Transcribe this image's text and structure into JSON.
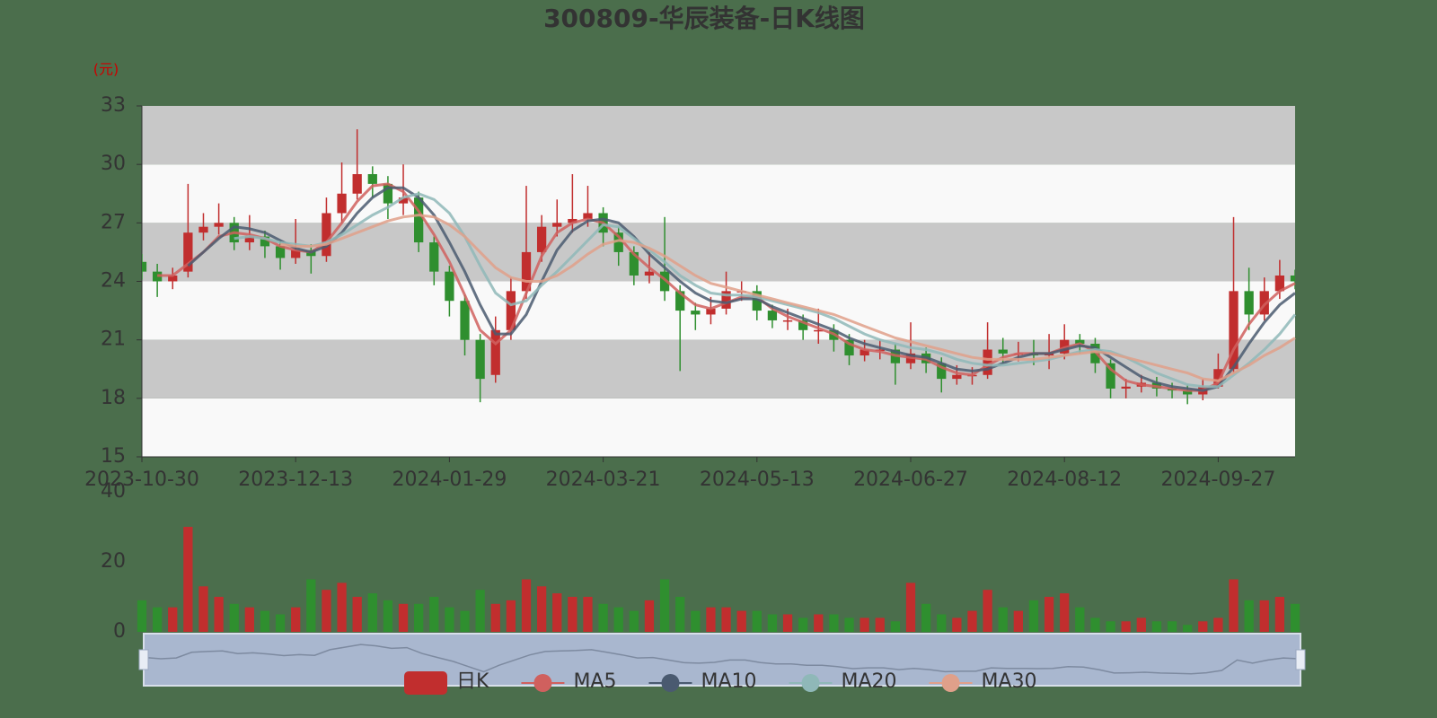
{
  "chart_data": {
    "type": "candlestick",
    "title": "300809-华辰装备-日K线图",
    "y_unit": "(元)",
    "categories": [
      "2023-10-30",
      null,
      null,
      null,
      null,
      null,
      null,
      null,
      null,
      null,
      "2023-12-13",
      null,
      null,
      null,
      null,
      null,
      null,
      null,
      null,
      null,
      "2024-01-29",
      null,
      null,
      null,
      null,
      null,
      null,
      null,
      null,
      null,
      "2024-03-21",
      null,
      null,
      null,
      null,
      null,
      null,
      null,
      null,
      null,
      "2024-05-13",
      null,
      null,
      null,
      null,
      null,
      null,
      null,
      null,
      null,
      "2024-06-27",
      null,
      null,
      null,
      null,
      null,
      null,
      null,
      null,
      null,
      "2024-08-12",
      null,
      null,
      null,
      null,
      null,
      null,
      null,
      null,
      null,
      "2024-09-27",
      null,
      null,
      null,
      null,
      null
    ],
    "ylim": [
      15,
      33
    ],
    "yticks": [
      15,
      18,
      21,
      24,
      27,
      30,
      33
    ],
    "split_area_colors": [
      "#f9f9f9",
      "#c8c8c8"
    ],
    "candles": {
      "name": "日K",
      "up_color": "#c12e2e",
      "down_color": "#2f8f2f",
      "open": [
        25,
        24.5,
        24,
        24.5,
        26.5,
        26.8,
        27,
        26,
        26.3,
        25.8,
        25.2,
        25.6,
        25.3,
        27.5,
        28.5,
        29.5,
        29,
        28,
        28.3,
        26,
        24.5,
        23,
        21,
        19.2,
        21.5,
        23.5,
        25.5,
        26.8,
        27,
        27.2,
        27.5,
        26.5,
        25.5,
        24.3,
        24.5,
        23.5,
        22.5,
        22.3,
        22.6,
        23.5,
        23.5,
        22.5,
        22,
        22,
        21.5,
        21.5,
        21,
        20.2,
        20.5,
        20.5,
        19.8,
        20.3,
        19.8,
        19,
        19.2,
        19.2,
        20.5,
        20.3,
        20.3,
        20.2,
        20.3,
        21,
        20.8,
        19.8,
        18.5,
        18.6,
        18.8,
        18.5,
        18.4,
        18.2,
        18.6,
        19.5,
        23.5,
        22.3,
        23.5,
        24.3
      ],
      "close": [
        24.5,
        24,
        24.3,
        26.5,
        26.8,
        27,
        26,
        26.3,
        25.8,
        25.2,
        25.6,
        25.3,
        27.5,
        28.5,
        29.5,
        29,
        28,
        28.3,
        26,
        24.5,
        23,
        21,
        19,
        21.5,
        23.5,
        25.5,
        26.8,
        27,
        27.2,
        27.5,
        26.5,
        25.5,
        24.3,
        24.5,
        23.5,
        22.5,
        22.3,
        22.6,
        23.5,
        23.5,
        22.5,
        22,
        22,
        21.5,
        21.5,
        21,
        20.2,
        20.5,
        20.5,
        19.8,
        20.3,
        19.8,
        19,
        19.2,
        19.2,
        20.5,
        20.3,
        20.3,
        20.2,
        20.3,
        21,
        20.8,
        19.8,
        18.5,
        18.6,
        18.8,
        18.5,
        18.4,
        18.2,
        18.6,
        19.5,
        23.5,
        22.3,
        23.5,
        24.3,
        24
      ],
      "low": [
        24.1,
        23.2,
        23.6,
        24.2,
        26.1,
        26.4,
        25.6,
        25.6,
        25.2,
        24.6,
        24.9,
        24.4,
        25,
        27,
        28.2,
        28.3,
        27.2,
        27.4,
        25.5,
        23.8,
        22.2,
        20.2,
        17.8,
        18.8,
        21,
        23.1,
        25,
        26.3,
        26.5,
        26.8,
        25.8,
        24.8,
        23.8,
        23.9,
        23,
        19.4,
        21.5,
        21.8,
        22.3,
        23,
        22,
        21.6,
        21.5,
        21,
        20.8,
        20.4,
        19.7,
        19.9,
        20,
        18.7,
        19.5,
        19.3,
        18.3,
        18.7,
        18.7,
        19,
        19.8,
        19.9,
        19.7,
        19.5,
        20,
        20.3,
        19.3,
        18,
        18,
        18.3,
        18.1,
        18,
        17.7,
        17.9,
        18.5,
        19.3,
        21.5,
        22,
        23.1,
        23.6
      ],
      "high": [
        25.4,
        24.9,
        24.7,
        29,
        27.5,
        28,
        27.3,
        27.4,
        26.6,
        26.1,
        27.2,
        25.9,
        28.3,
        30.1,
        31.8,
        29.9,
        29.4,
        30,
        28.6,
        26.3,
        24.8,
        23.3,
        21.3,
        22.2,
        24.2,
        28.9,
        27.4,
        28.2,
        29.5,
        28.9,
        27.8,
        26.8,
        25.8,
        25.5,
        27.3,
        23.8,
        22.9,
        23.2,
        24.5,
        24,
        23.8,
        22.8,
        22.6,
        22.3,
        22.6,
        21.8,
        21.3,
        21,
        21,
        20.8,
        21.9,
        20.6,
        20.1,
        19.7,
        19.6,
        21.9,
        21.1,
        20.9,
        21,
        21.3,
        21.8,
        21.3,
        21.1,
        20,
        19,
        19.2,
        19.1,
        18.8,
        18.7,
        19,
        20.3,
        27.3,
        24.7,
        24.2,
        25.1,
        24.6
      ]
    },
    "series": [
      {
        "name": "MA5",
        "color": "#d0605e",
        "values": [
          null,
          24.3,
          24.3,
          24.9,
          25.5,
          26.3,
          26.5,
          26.4,
          26.2,
          25.8,
          25.6,
          25.5,
          26,
          27,
          28.1,
          28.9,
          29,
          28.6,
          27.6,
          26.4,
          25,
          23.3,
          21.5,
          20.8,
          21.5,
          23.4,
          25.3,
          26.5,
          27,
          27.2,
          27,
          26.3,
          25.4,
          24.7,
          24.1,
          23.4,
          22.8,
          22.6,
          22.9,
          23.2,
          23.2,
          22.6,
          22.2,
          21.9,
          21.6,
          21.3,
          20.8,
          20.5,
          20.4,
          20.2,
          20.1,
          20,
          19.6,
          19.3,
          19.2,
          19.7,
          20.1,
          20.3,
          20.3,
          20.3,
          20.6,
          20.8,
          20.4,
          19.5,
          18.9,
          18.7,
          18.6,
          18.5,
          18.4,
          18.4,
          18.8,
          20.5,
          21.8,
          22.8,
          23.5,
          23.9
        ]
      },
      {
        "name": "MA10",
        "color": "#4a5a70",
        "values": [
          null,
          null,
          null,
          24.8,
          25.5,
          26.2,
          26.8,
          26.7,
          26.5,
          26.1,
          25.7,
          25.5,
          25.8,
          26.5,
          27.5,
          28.3,
          28.8,
          28.8,
          28.3,
          27.4,
          26,
          24.5,
          22.8,
          21.3,
          21.3,
          22.3,
          24,
          25.6,
          26.6,
          27.1,
          27.2,
          27,
          26.3,
          25.4,
          24.7,
          24,
          23.4,
          23,
          22.9,
          23.1,
          23.1,
          22.7,
          22.4,
          22.1,
          21.8,
          21.5,
          21.1,
          20.8,
          20.6,
          20.4,
          20.2,
          20.1,
          19.8,
          19.5,
          19.4,
          19.5,
          19.8,
          20.1,
          20.3,
          20.3,
          20.5,
          20.7,
          20.6,
          20.1,
          19.6,
          19.1,
          18.8,
          18.6,
          18.5,
          18.4,
          18.6,
          19.6,
          20.8,
          21.9,
          22.8,
          23.4
        ]
      },
      {
        "name": "MA20",
        "color": "#8fb8b8",
        "values": [
          null,
          null,
          null,
          null,
          null,
          null,
          26.2,
          26.3,
          26.2,
          26,
          25.9,
          25.8,
          26,
          26.4,
          26.9,
          27.4,
          27.8,
          28.3,
          28.5,
          28.2,
          27.5,
          26.3,
          24.8,
          23.4,
          22.8,
          23,
          23.8,
          24.5,
          25.3,
          26.1,
          26.9,
          26.8,
          26.2,
          25.6,
          25,
          24.3,
          23.8,
          23.4,
          23.3,
          23.3,
          23.2,
          23,
          22.8,
          22.6,
          22.4,
          22.1,
          21.7,
          21.3,
          21,
          20.8,
          20.6,
          20.5,
          20.3,
          20,
          19.8,
          19.7,
          19.7,
          19.8,
          19.9,
          20,
          20.2,
          20.4,
          20.5,
          20.4,
          20.1,
          19.7,
          19.3,
          19,
          18.7,
          18.6,
          18.6,
          19.2,
          19.8,
          20.5,
          21.3,
          22.3
        ]
      },
      {
        "name": "MA30",
        "color": "#e0a08a",
        "values": [
          null,
          null,
          null,
          null,
          null,
          null,
          null,
          null,
          null,
          25.9,
          25.8,
          25.8,
          25.9,
          26.2,
          26.5,
          26.8,
          27.1,
          27.3,
          27.4,
          27.3,
          26.9,
          26.3,
          25.5,
          24.7,
          24.2,
          24,
          24,
          24.3,
          24.8,
          25.4,
          25.9,
          26.1,
          26,
          25.7,
          25.3,
          24.8,
          24.3,
          23.9,
          23.7,
          23.5,
          23.3,
          23.1,
          22.9,
          22.7,
          22.5,
          22.3,
          22,
          21.7,
          21.4,
          21.1,
          20.9,
          20.7,
          20.5,
          20.3,
          20.1,
          20,
          20,
          20,
          20,
          20.1,
          20.2,
          20.3,
          20.4,
          20.3,
          20.1,
          19.9,
          19.7,
          19.5,
          19.3,
          19,
          18.9,
          19.3,
          19.7,
          20.2,
          20.6,
          21.1
        ]
      }
    ],
    "volume": {
      "values": [
        9,
        7,
        7,
        30,
        13,
        10,
        8,
        7,
        6,
        5,
        7,
        15,
        12,
        14,
        10,
        11,
        9,
        8,
        8,
        10,
        7,
        6,
        12,
        8,
        9,
        15,
        13,
        11,
        10,
        10,
        8,
        7,
        6,
        9,
        15,
        10,
        6,
        7,
        7,
        6,
        6,
        5,
        5,
        4,
        5,
        5,
        4,
        4,
        4,
        3,
        14,
        8,
        5,
        4,
        6,
        12,
        7,
        6,
        9,
        10,
        11,
        7,
        4,
        3,
        3,
        4,
        3,
        3,
        2,
        3,
        4,
        15,
        9,
        9,
        10,
        8
      ],
      "ylim": [
        0,
        40
      ],
      "yticks": [
        0,
        20,
        40
      ]
    }
  }
}
